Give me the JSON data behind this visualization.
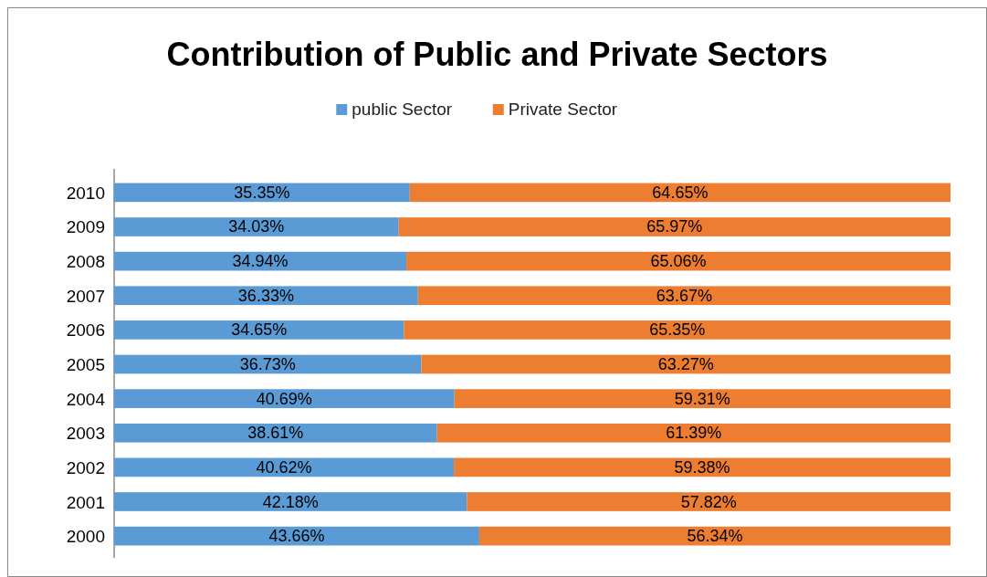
{
  "chart_data": {
    "type": "bar",
    "title": "Contribution of Public and Private Sectors",
    "orientation": "horizontal",
    "stacked": true,
    "categories": [
      "2010",
      "2009",
      "2008",
      "2007",
      "2006",
      "2005",
      "2004",
      "2003",
      "2002",
      "2001",
      "2000"
    ],
    "xlim": [
      0,
      100
    ],
    "tick_labels": "y",
    "legend": "top",
    "series": [
      {
        "name": "public Sector",
        "color": "#5b9bd5",
        "values": [
          35.35,
          34.03,
          34.94,
          36.33,
          34.65,
          36.73,
          40.69,
          38.61,
          40.62,
          42.18,
          43.66
        ],
        "value_labels": [
          "35.35%",
          "34.03%",
          "34.94%",
          "36.33%",
          "34.65%",
          "36.73%",
          "40.69%",
          "38.61%",
          "40.62%",
          "42.18%",
          "43.66%"
        ]
      },
      {
        "name": "Private Sector",
        "color": "#ed7d31",
        "values": [
          64.65,
          65.97,
          65.06,
          63.67,
          65.35,
          63.27,
          59.31,
          61.39,
          59.38,
          57.82,
          56.34
        ],
        "value_labels": [
          "64.65%",
          "65.97%",
          "65.06%",
          "63.67%",
          "65.35%",
          "63.27%",
          "59.31%",
          "61.39%",
          "59.38%",
          "57.82%",
          "56.34%"
        ]
      }
    ]
  }
}
